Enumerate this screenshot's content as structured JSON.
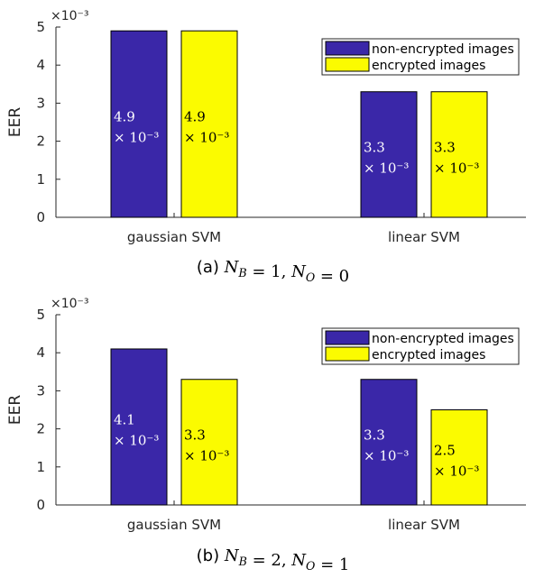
{
  "chart_data": [
    {
      "type": "bar",
      "caption": {
        "prefix": "(a) ",
        "math": "N_B = 1, N_O = 0"
      },
      "categories": [
        "gaussian SVM",
        "linear SVM"
      ],
      "series": [
        {
          "name": "non-encrypted images",
          "color": "#3a27a8",
          "values": [
            0.0049,
            0.0033
          ]
        },
        {
          "name": "encrypted images",
          "color": "#fbfb00",
          "values": [
            0.0049,
            0.0033
          ]
        }
      ],
      "bar_labels": [
        [
          {
            "value": "4.9",
            "exp": "× 10⁻³"
          },
          {
            "value": "3.3",
            "exp": "× 10⁻³"
          }
        ],
        [
          {
            "value": "4.9",
            "exp": "× 10⁻³"
          },
          {
            "value": "3.3",
            "exp": "× 10⁻³"
          }
        ]
      ],
      "ylabel": "EER",
      "yticks": [
        "0",
        "1",
        "2",
        "3",
        "4",
        "5"
      ],
      "y_exponent": "×10⁻³",
      "ylim": [
        0,
        0.005
      ],
      "legend_position": "top-right",
      "grid": false
    },
    {
      "type": "bar",
      "caption": {
        "prefix": "(b) ",
        "math": "N_B = 2, N_O = 1"
      },
      "categories": [
        "gaussian SVM",
        "linear SVM"
      ],
      "series": [
        {
          "name": "non-encrypted images",
          "color": "#3a27a8",
          "values": [
            0.0041,
            0.0033
          ]
        },
        {
          "name": "encrypted images",
          "color": "#fbfb00",
          "values": [
            0.0033,
            0.0025
          ]
        }
      ],
      "bar_labels": [
        [
          {
            "value": "4.1",
            "exp": "× 10⁻³"
          },
          {
            "value": "3.3",
            "exp": "× 10⁻³"
          }
        ],
        [
          {
            "value": "3.3",
            "exp": "× 10⁻³"
          },
          {
            "value": "2.5",
            "exp": "× 10⁻³"
          }
        ]
      ],
      "ylabel": "EER",
      "yticks": [
        "0",
        "1",
        "2",
        "3",
        "4",
        "5"
      ],
      "y_exponent": "×10⁻³",
      "ylim": [
        0,
        0.005
      ],
      "legend_position": "top-right",
      "grid": false
    }
  ]
}
